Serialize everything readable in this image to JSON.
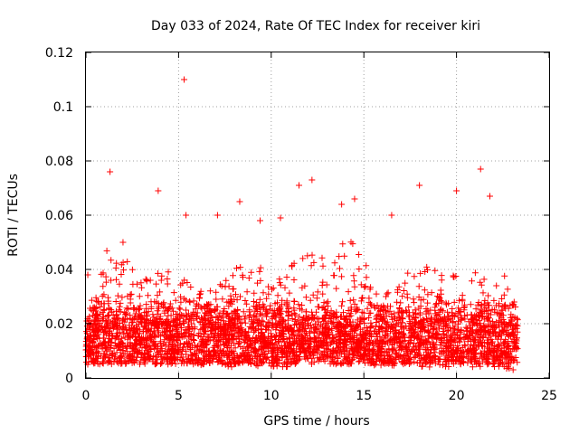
{
  "chart_data": {
    "type": "scatter",
    "title": "Day 033 of 2024, Rate Of TEC Index for receiver kiri",
    "xlabel": "GPS time / hours",
    "ylabel": "ROTI / TECUs",
    "xlim": [
      0,
      25
    ],
    "ylim": [
      0,
      0.12
    ],
    "xticks": [
      "0",
      "5",
      "10",
      "15",
      "20",
      "25"
    ],
    "yticks": [
      "0",
      "0.02",
      "0.04",
      "0.06",
      "0.08",
      "0.1",
      "0.12"
    ],
    "grid": true,
    "marker": "+",
    "series_color": "#ff0000",
    "data_extent_hours": [
      0,
      23.3
    ],
    "typical_band": [
      0.005,
      0.03
    ],
    "highlight_points": [
      {
        "x": 5.3,
        "y": 0.11
      },
      {
        "x": 1.3,
        "y": 0.076
      },
      {
        "x": 21.3,
        "y": 0.077
      },
      {
        "x": 12.2,
        "y": 0.073
      },
      {
        "x": 11.5,
        "y": 0.071
      },
      {
        "x": 18.0,
        "y": 0.071
      },
      {
        "x": 20.0,
        "y": 0.069
      },
      {
        "x": 3.9,
        "y": 0.069
      },
      {
        "x": 14.5,
        "y": 0.066
      },
      {
        "x": 8.3,
        "y": 0.065
      },
      {
        "x": 13.8,
        "y": 0.064
      },
      {
        "x": 21.8,
        "y": 0.067
      },
      {
        "x": 5.4,
        "y": 0.06
      },
      {
        "x": 7.1,
        "y": 0.06
      },
      {
        "x": 9.4,
        "y": 0.058
      },
      {
        "x": 16.5,
        "y": 0.06
      },
      {
        "x": 10.5,
        "y": 0.059
      },
      {
        "x": 0.1,
        "y": 0.038
      },
      {
        "x": 2.0,
        "y": 0.05
      }
    ],
    "envelope": [
      {
        "x": 0.0,
        "lo": 0.008,
        "hi": 0.02
      },
      {
        "x": 0.5,
        "lo": 0.006,
        "hi": 0.028
      },
      {
        "x": 1.0,
        "lo": 0.006,
        "hi": 0.048
      },
      {
        "x": 1.5,
        "lo": 0.005,
        "hi": 0.045
      },
      {
        "x": 2.0,
        "lo": 0.006,
        "hi": 0.045
      },
      {
        "x": 3.0,
        "lo": 0.005,
        "hi": 0.036
      },
      {
        "x": 4.0,
        "lo": 0.005,
        "hi": 0.042
      },
      {
        "x": 5.0,
        "lo": 0.005,
        "hi": 0.04
      },
      {
        "x": 6.0,
        "lo": 0.005,
        "hi": 0.032
      },
      {
        "x": 7.0,
        "lo": 0.004,
        "hi": 0.033
      },
      {
        "x": 8.0,
        "lo": 0.004,
        "hi": 0.04
      },
      {
        "x": 9.0,
        "lo": 0.004,
        "hi": 0.045
      },
      {
        "x": 10.0,
        "lo": 0.004,
        "hi": 0.035
      },
      {
        "x": 11.0,
        "lo": 0.004,
        "hi": 0.045
      },
      {
        "x": 12.0,
        "lo": 0.007,
        "hi": 0.05
      },
      {
        "x": 13.0,
        "lo": 0.007,
        "hi": 0.048
      },
      {
        "x": 14.0,
        "lo": 0.007,
        "hi": 0.055
      },
      {
        "x": 15.0,
        "lo": 0.005,
        "hi": 0.045
      },
      {
        "x": 16.0,
        "lo": 0.004,
        "hi": 0.033
      },
      {
        "x": 17.0,
        "lo": 0.004,
        "hi": 0.038
      },
      {
        "x": 18.0,
        "lo": 0.004,
        "hi": 0.042
      },
      {
        "x": 19.0,
        "lo": 0.004,
        "hi": 0.04
      },
      {
        "x": 20.0,
        "lo": 0.004,
        "hi": 0.038
      },
      {
        "x": 21.0,
        "lo": 0.004,
        "hi": 0.04
      },
      {
        "x": 22.0,
        "lo": 0.004,
        "hi": 0.036
      },
      {
        "x": 23.0,
        "lo": 0.003,
        "hi": 0.04
      },
      {
        "x": 23.3,
        "lo": 0.003,
        "hi": 0.042
      }
    ]
  }
}
